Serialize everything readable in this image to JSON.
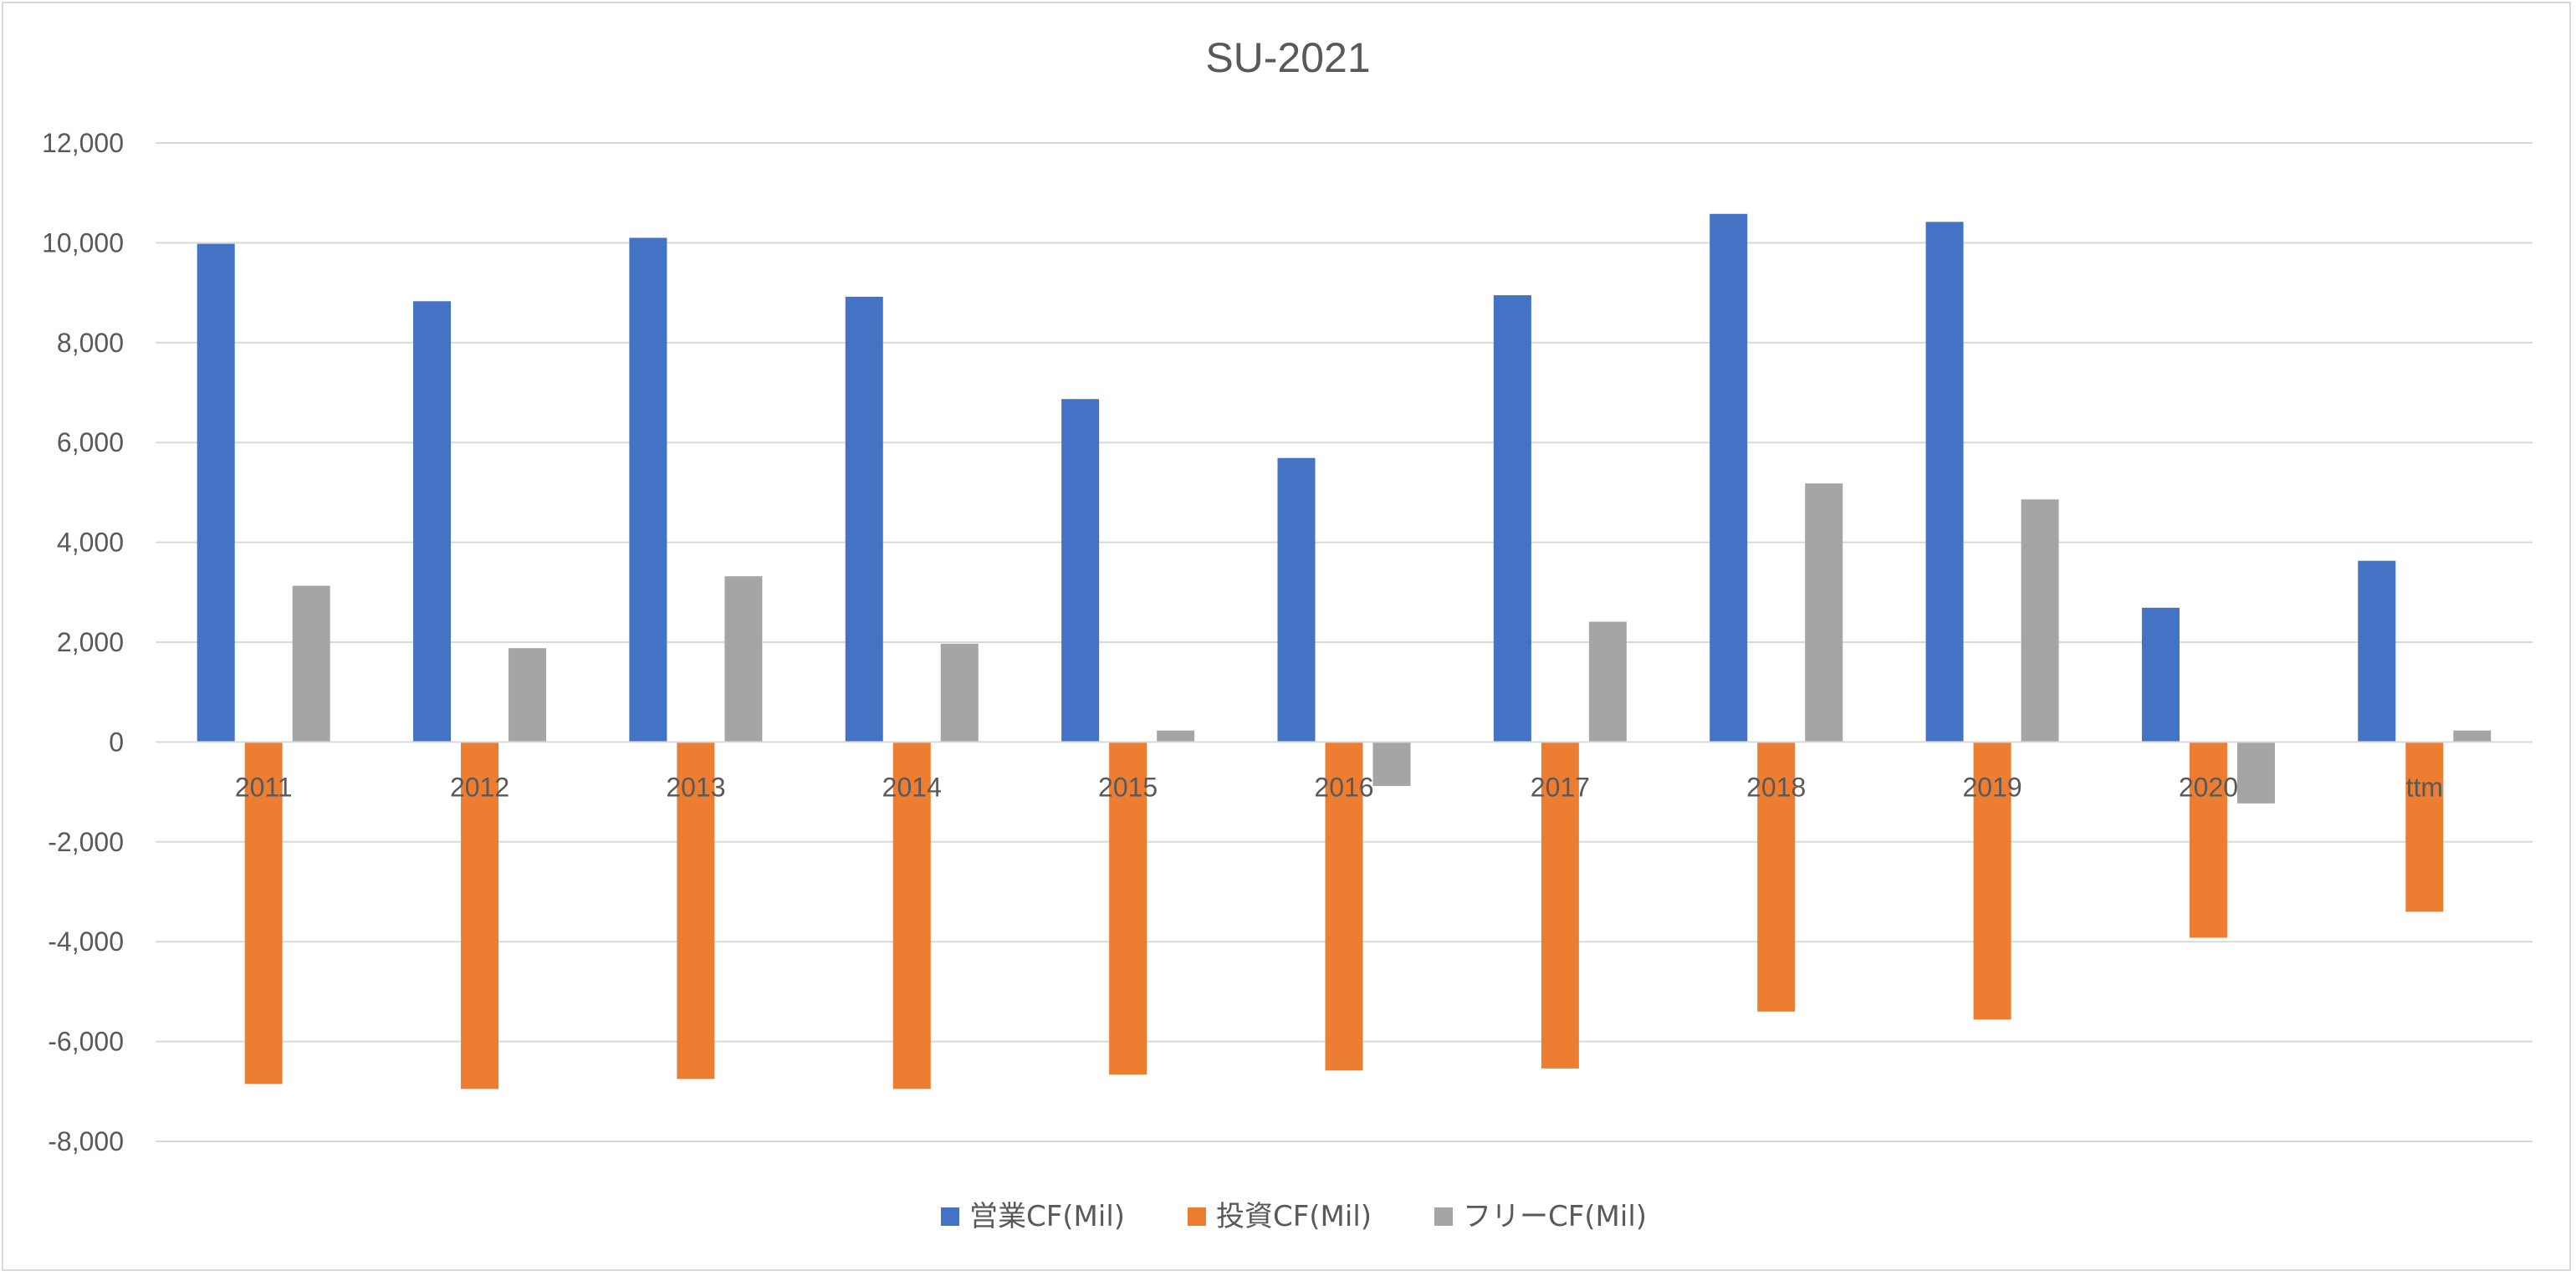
{
  "chart_data": {
    "type": "bar",
    "title": "SU-2021",
    "xlabel": "",
    "ylabel": "",
    "categories": [
      "2011",
      "2012",
      "2013",
      "2014",
      "2015",
      "2016",
      "2017",
      "2018",
      "2019",
      "2020",
      "ttm"
    ],
    "series": [
      {
        "name": "営業CF(Mil)",
        "color": "#4472C4",
        "values": [
          9980,
          8830,
          10100,
          8920,
          6870,
          5690,
          8950,
          10580,
          10420,
          2690,
          3630
        ]
      },
      {
        "name": "投資CF(Mil)",
        "color": "#ED7D31",
        "values": [
          -6850,
          -6950,
          -6750,
          -6950,
          -6660,
          -6580,
          -6540,
          -5400,
          -5560,
          -3920,
          -3400
        ]
      },
      {
        "name": "フリーCF(Mil)",
        "color": "#A5A5A5",
        "values": [
          3130,
          1880,
          3320,
          1970,
          230,
          -880,
          2410,
          5180,
          4860,
          -1230,
          230
        ]
      }
    ],
    "ylim": [
      -8000,
      12000
    ],
    "yticks": [
      12000,
      10000,
      8000,
      6000,
      4000,
      2000,
      0,
      -2000,
      -4000,
      -6000,
      -8000
    ],
    "ytick_labels": [
      "12,000",
      "10,000",
      "8,000",
      "6,000",
      "4,000",
      "2,000",
      "0",
      "-2,000",
      "-4,000",
      "-6,000",
      "-8,000"
    ],
    "grid": true,
    "legend_position": "bottom"
  }
}
